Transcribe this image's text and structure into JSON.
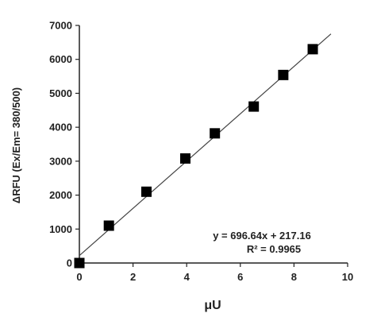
{
  "chart_data": {
    "type": "scatter",
    "xlabel": "μU",
    "ylabel": "ΔRFU  (Ex/Em= 380/500)",
    "xlim": [
      0,
      10
    ],
    "ylim": [
      0,
      7000
    ],
    "x_ticks": [
      "0",
      "2",
      "4",
      "6",
      "8",
      "10"
    ],
    "y_ticks": [
      "0",
      "1000",
      "2000",
      "3000",
      "4000",
      "5000",
      "6000",
      "7000"
    ],
    "grid": false,
    "series": [
      {
        "marker": "square",
        "color": "#000000",
        "points": [
          {
            "x": 0,
            "y": 0
          },
          {
            "x": 1.1,
            "y": 1100
          },
          {
            "x": 2.5,
            "y": 2100
          },
          {
            "x": 3.95,
            "y": 3080
          },
          {
            "x": 5.05,
            "y": 3820
          },
          {
            "x": 6.5,
            "y": 4610
          },
          {
            "x": 7.6,
            "y": 5540
          },
          {
            "x": 8.7,
            "y": 6300
          }
        ]
      }
    ],
    "trendline": {
      "slope": 696.64,
      "intercept": 217.16,
      "color": "#444444",
      "equation": "y = 696.64x + 217.16",
      "r_squared": "R² = 0.9965"
    }
  }
}
